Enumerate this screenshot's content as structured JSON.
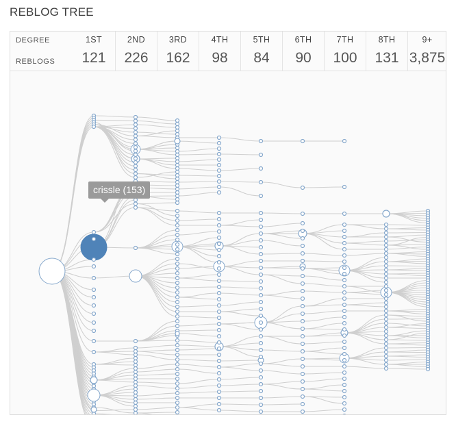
{
  "header": {
    "title": "REBLOG TREE"
  },
  "stats": {
    "degree_label": "DEGREE",
    "reblogs_label": "REBLOGS",
    "columns": [
      {
        "degree": "1ST",
        "count": "121"
      },
      {
        "degree": "2ND",
        "count": "226"
      },
      {
        "degree": "3RD",
        "count": "162"
      },
      {
        "degree": "4TH",
        "count": "98"
      },
      {
        "degree": "5TH",
        "count": "84"
      },
      {
        "degree": "6TH",
        "count": "90"
      },
      {
        "degree": "7TH",
        "count": "100"
      },
      {
        "degree": "8TH",
        "count": "131"
      },
      {
        "degree": "9+",
        "count": "3,875"
      }
    ]
  },
  "tooltip": {
    "label": "crissle (153)"
  },
  "colors": {
    "edge": "#cfcfcf",
    "node_stroke": "#86a8cc",
    "highlight": "#4f83b8"
  }
}
